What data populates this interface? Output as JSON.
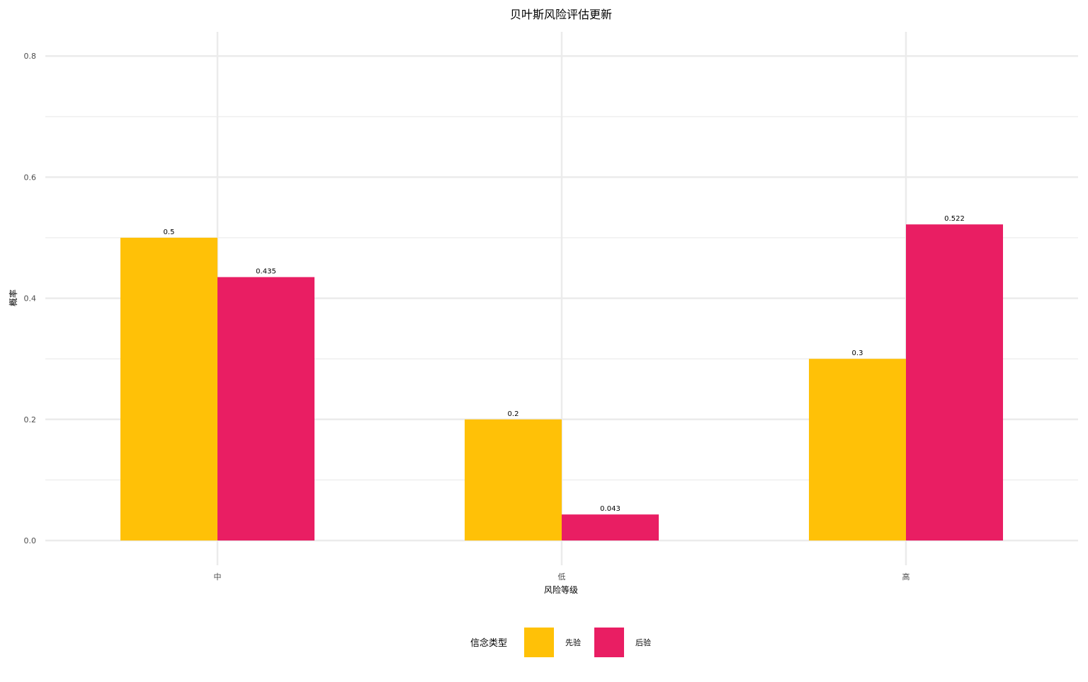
{
  "chart_data": {
    "type": "bar",
    "title": "贝叶斯风险评估更新",
    "xlabel": "风险等级",
    "ylabel": "概率",
    "categories": [
      "中",
      "低",
      "高"
    ],
    "series": [
      {
        "name": "先验",
        "values": [
          0.5,
          0.2,
          0.3
        ],
        "labels": [
          "0.5",
          "0.2",
          "0.3"
        ],
        "color": "#FFC107"
      },
      {
        "name": "后验",
        "values": [
          0.435,
          0.043,
          0.522
        ],
        "labels": [
          "0.435",
          "0.043",
          "0.522"
        ],
        "color": "#E91E63"
      }
    ],
    "ylim": [
      0,
      0.84
    ],
    "yticks": [
      0.0,
      0.2,
      0.4,
      0.6,
      0.8
    ],
    "ytick_labels": [
      "0.0",
      "0.2",
      "0.4",
      "0.6",
      "0.8"
    ],
    "grid": true,
    "legend": {
      "title": "信念类型",
      "placement": "bottom"
    }
  }
}
